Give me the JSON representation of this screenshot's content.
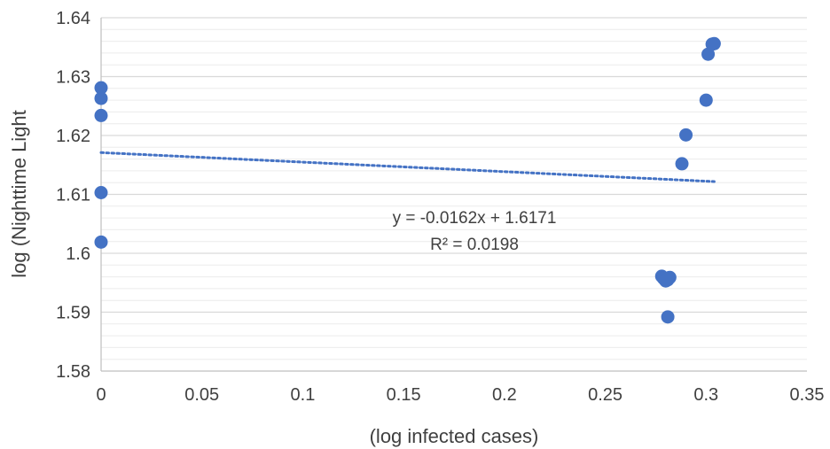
{
  "chart_data": {
    "type": "scatter",
    "xlabel": "(log infected cases)",
    "ylabel": "log (Nighttime Light",
    "xlim": [
      0,
      0.35
    ],
    "ylim": [
      1.58,
      1.64
    ],
    "x_ticks": [
      "0",
      "0.05",
      "0.1",
      "0.15",
      "0.2",
      "0.25",
      "0.3",
      "0.35"
    ],
    "y_ticks": [
      "1.58",
      "1.59",
      "1.6",
      "1.61",
      "1.62",
      "1.63",
      "1.64"
    ],
    "x_tick_values": [
      0,
      0.05,
      0.1,
      0.15,
      0.2,
      0.25,
      0.3,
      0.35
    ],
    "y_tick_values": [
      1.58,
      1.59,
      1.6,
      1.61,
      1.62,
      1.63,
      1.64
    ],
    "minor_grid_step": 0.002,
    "grid": true,
    "colors": {
      "points": "#4472C4",
      "trendline": "#4472C4",
      "grid": "#d9d9d9",
      "axis": "#bfbfbf",
      "text": "#404040"
    },
    "series": [
      {
        "points": [
          {
            "x": 0.0,
            "y": 1.6281
          },
          {
            "x": 0.0,
            "y": 1.6263
          },
          {
            "x": 0.0,
            "y": 1.6234
          },
          {
            "x": 0.0,
            "y": 1.6103
          },
          {
            "x": 0.0,
            "y": 1.6019
          },
          {
            "x": 0.278,
            "y": 1.5961
          },
          {
            "x": 0.279,
            "y": 1.5957
          },
          {
            "x": 0.28,
            "y": 1.5953
          },
          {
            "x": 0.281,
            "y": 1.5955
          },
          {
            "x": 0.282,
            "y": 1.5959
          },
          {
            "x": 0.281,
            "y": 1.5892
          },
          {
            "x": 0.288,
            "y": 1.6152
          },
          {
            "x": 0.29,
            "y": 1.6201
          },
          {
            "x": 0.3,
            "y": 1.626
          },
          {
            "x": 0.301,
            "y": 1.6338
          },
          {
            "x": 0.303,
            "y": 1.6355
          },
          {
            "x": 0.304,
            "y": 1.6356
          }
        ]
      }
    ],
    "trendline": {
      "type": "linear",
      "slope": -0.0162,
      "intercept": 1.6171,
      "x_range": [
        0,
        0.304
      ],
      "equation": "y = -0.0162x + 1.6171",
      "r2_label": "R² = 0.0198"
    }
  }
}
